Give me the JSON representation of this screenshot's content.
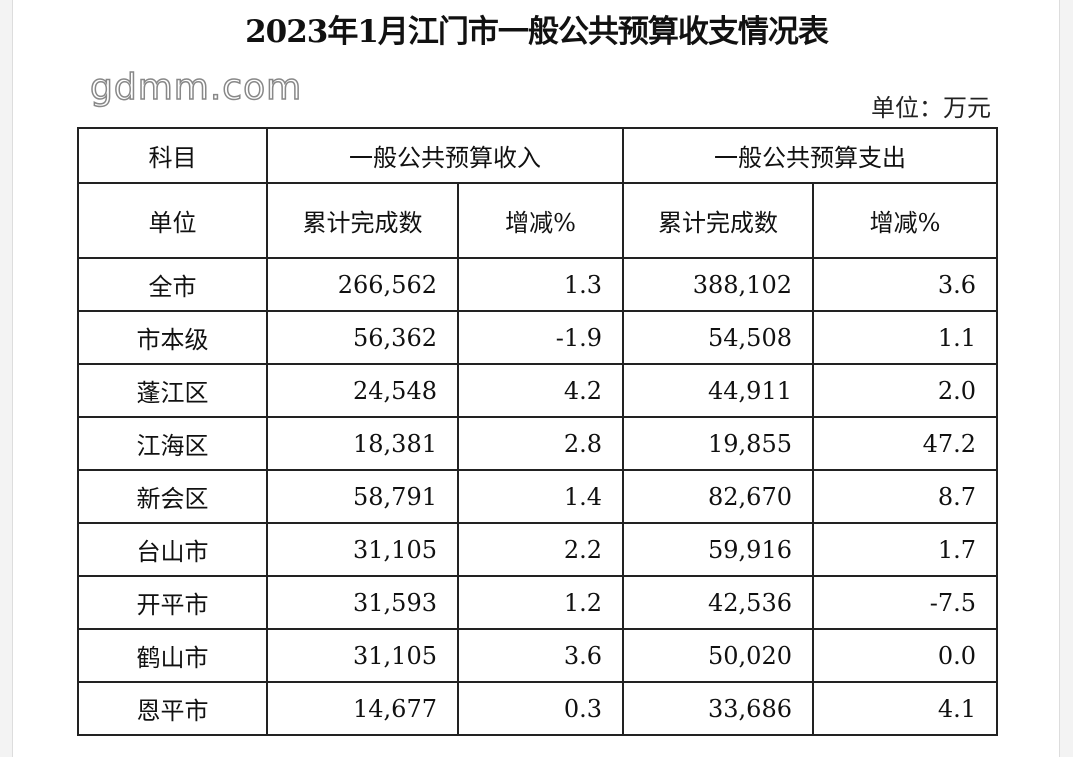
{
  "title": "2023年1月江门市一般公共预算收支情况表",
  "unit_label": "单位：万元",
  "header": {
    "subject": "科目",
    "income": "一般公共预算收入",
    "expense": "一般公共预算支出",
    "unit": "单位",
    "cumulative": "累计完成数",
    "change": "增减%"
  },
  "rows": [
    {
      "name": "全市",
      "income": "266,562",
      "income_change": "1.3",
      "expense": "388,102",
      "expense_change": "3.6"
    },
    {
      "name": "市本级",
      "income": "56,362",
      "income_change": "-1.9",
      "expense": "54,508",
      "expense_change": "1.1"
    },
    {
      "name": "蓬江区",
      "income": "24,548",
      "income_change": "4.2",
      "expense": "44,911",
      "expense_change": "2.0"
    },
    {
      "name": "江海区",
      "income": "18,381",
      "income_change": "2.8",
      "expense": "19,855",
      "expense_change": "47.2"
    },
    {
      "name": "新会区",
      "income": "58,791",
      "income_change": "1.4",
      "expense": "82,670",
      "expense_change": "8.7"
    },
    {
      "name": "台山市",
      "income": "31,105",
      "income_change": "2.2",
      "expense": "59,916",
      "expense_change": "1.7"
    },
    {
      "name": "开平市",
      "income": "31,593",
      "income_change": "1.2",
      "expense": "42,536",
      "expense_change": "-7.5"
    },
    {
      "name": "鹤山市",
      "income": "31,105",
      "income_change": "3.6",
      "expense": "50,020",
      "expense_change": "0.0"
    },
    {
      "name": "恩平市",
      "income": "14,677",
      "income_change": "0.3",
      "expense": "33,686",
      "expense_change": "4.1"
    }
  ],
  "watermark": "gdmm.com"
}
